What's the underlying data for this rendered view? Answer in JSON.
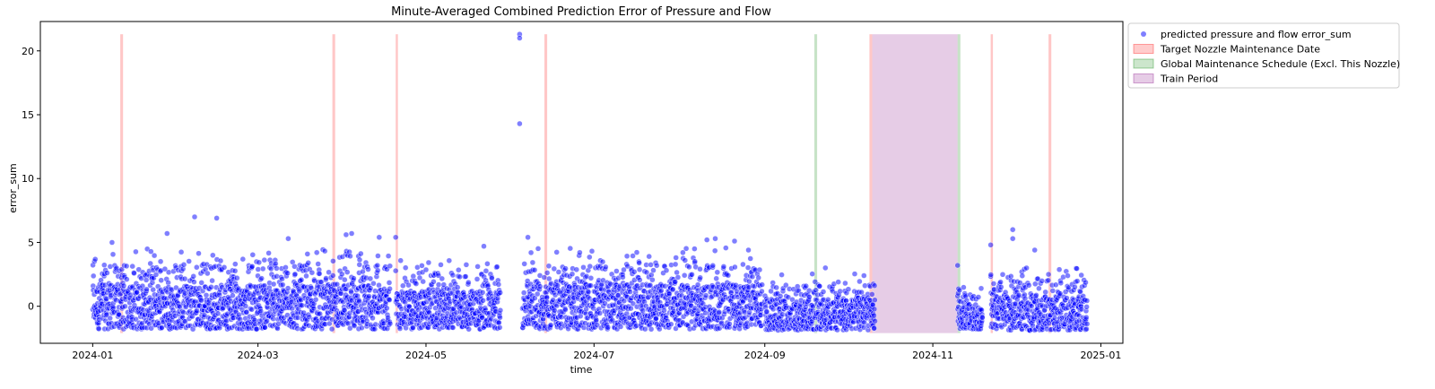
{
  "chart_data": {
    "type": "scatter",
    "title": "Minute-Averaged Combined Prediction Error of Pressure and Flow",
    "xlabel": "time",
    "ylabel": "error_sum",
    "xlim": [
      "2023-12-13",
      "2025-01-09"
    ],
    "ylim": [
      -2.9,
      22.3
    ],
    "x_ticks": [
      "2024-01",
      "2024-03",
      "2024-05",
      "2024-07",
      "2024-09",
      "2024-11",
      "2025-01"
    ],
    "y_ticks": [
      0,
      5,
      10,
      15,
      20
    ],
    "grid": false,
    "legend_position": "outside-top-right",
    "series": [
      {
        "name": "predicted pressure and flow error_sum",
        "kind": "scatter",
        "color": "#0000ff",
        "segments": [
          {
            "start": "2024-01-01",
            "end": "2024-04-18",
            "low": -1.8,
            "high": 4.5
          },
          {
            "start": "2024-04-20",
            "end": "2024-05-28",
            "low": -1.8,
            "high": 3.6
          },
          {
            "start": "2024-06-05",
            "end": "2024-08-31",
            "low": -1.8,
            "high": 4.6
          },
          {
            "start": "2024-09-01",
            "end": "2024-10-11",
            "low": -1.9,
            "high": 2.6
          },
          {
            "start": "2024-11-10",
            "end": "2024-11-19",
            "low": -1.8,
            "high": 1.5
          },
          {
            "start": "2024-11-22",
            "end": "2024-12-27",
            "low": -1.9,
            "high": 3.0
          }
        ],
        "outliers": [
          {
            "x": "2024-01-08",
            "y": 5.0
          },
          {
            "x": "2024-01-28",
            "y": 5.7
          },
          {
            "x": "2024-02-07",
            "y": 7.0
          },
          {
            "x": "2024-02-15",
            "y": 6.9
          },
          {
            "x": "2024-03-12",
            "y": 5.3
          },
          {
            "x": "2024-04-02",
            "y": 5.6
          },
          {
            "x": "2024-04-04",
            "y": 5.7
          },
          {
            "x": "2024-04-14",
            "y": 5.4
          },
          {
            "x": "2024-04-20",
            "y": 5.4
          },
          {
            "x": "2024-05-22",
            "y": 4.7
          },
          {
            "x": "2024-06-04",
            "y": 21.3
          },
          {
            "x": "2024-06-04",
            "y": 21.0
          },
          {
            "x": "2024-06-04",
            "y": 14.3
          },
          {
            "x": "2024-06-07",
            "y": 5.4
          },
          {
            "x": "2024-07-21",
            "y": 3.9
          },
          {
            "x": "2024-08-11",
            "y": 5.2
          },
          {
            "x": "2024-08-14",
            "y": 5.3
          },
          {
            "x": "2024-08-21",
            "y": 5.1
          },
          {
            "x": "2024-09-23",
            "y": 3.0
          },
          {
            "x": "2024-10-07",
            "y": 2.4
          },
          {
            "x": "2024-11-10",
            "y": 3.2
          },
          {
            "x": "2024-11-22",
            "y": 4.8
          },
          {
            "x": "2024-11-30",
            "y": 6.0
          },
          {
            "x": "2024-11-30",
            "y": 5.3
          },
          {
            "x": "2024-12-08",
            "y": 4.4
          },
          {
            "x": "2024-12-13",
            "y": 2.5
          }
        ]
      },
      {
        "name": "Target Nozzle Maintenance Date",
        "kind": "vspan",
        "color": "#ff0000",
        "spans": [
          [
            "2024-01-11",
            "2024-01-12"
          ],
          [
            "2024-03-28",
            "2024-03-29"
          ],
          [
            "2024-04-20",
            "2024-04-20"
          ],
          [
            "2024-06-13",
            "2024-06-14"
          ],
          [
            "2024-10-09",
            "2024-10-10"
          ],
          [
            "2024-11-22",
            "2024-11-22"
          ],
          [
            "2024-12-13",
            "2024-12-14"
          ]
        ]
      },
      {
        "name": "Global Maintenance Schedule (Excl. This Nozzle)",
        "kind": "vspan",
        "color": "#008000",
        "spans": [
          [
            "2024-09-19",
            "2024-09-20"
          ],
          [
            "2024-11-10",
            "2024-11-11"
          ]
        ]
      },
      {
        "name": "Train Period",
        "kind": "vspan",
        "color": "#800080",
        "spans": [
          [
            "2024-10-10",
            "2024-11-10"
          ]
        ]
      }
    ]
  }
}
